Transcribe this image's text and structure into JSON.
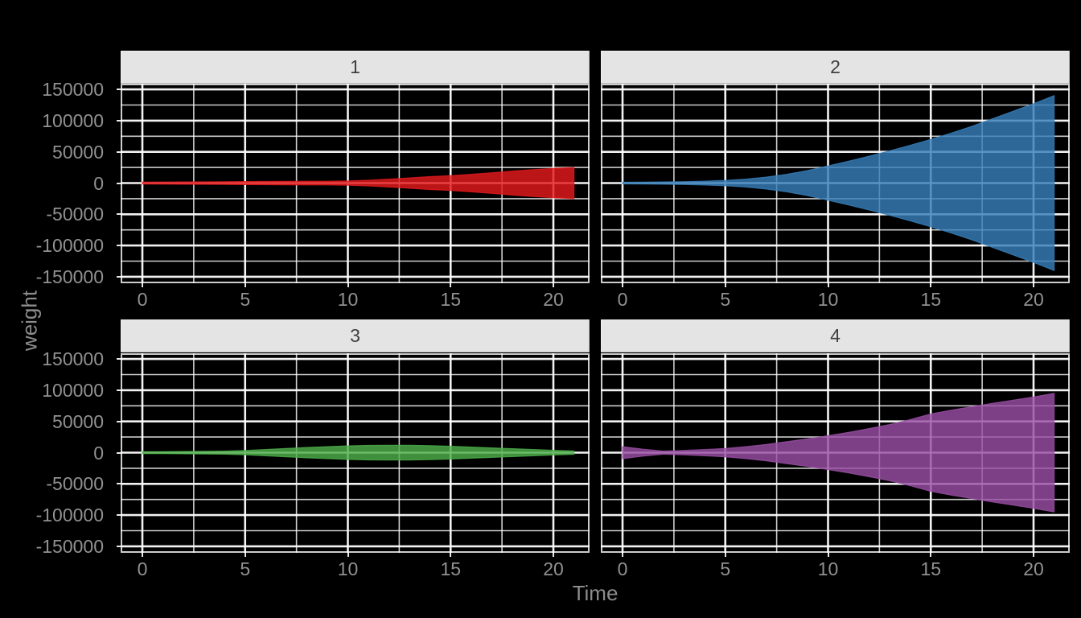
{
  "chart_data": {
    "type": "area",
    "variant": "faceted symmetric fan/violin ribbons centered on y=0",
    "title": "",
    "xlabel": "Time",
    "ylabel": "weight",
    "legend": "none",
    "grid": "white major and minor gridlines on dark (transparent) panel background",
    "background_color": "#000000",
    "grid_color": "#FFFFFF",
    "strip_bg_color": "#E4E4E4",
    "strip_text_color": "#3F3F3F",
    "axis_text_color": "#919191",
    "fill_opacity": 0.82,
    "xlim": [
      -1.06,
      21.76
    ],
    "ylim": [
      -160000,
      160000
    ],
    "x_ticks": [
      0,
      5,
      10,
      15,
      20
    ],
    "x_tick_labels": [
      "0",
      "5",
      "10",
      "15",
      "20"
    ],
    "x_minor_ticks": [
      2.5,
      7.5,
      12.5,
      17.5
    ],
    "y_ticks": [
      150000,
      100000,
      50000,
      0,
      -50000,
      -100000,
      -150000
    ],
    "y_tick_labels": [
      "150000",
      "100000",
      "50000",
      "0",
      "-50000",
      "-100000",
      "-150000"
    ],
    "y_minor_ticks": [
      125000,
      75000,
      25000,
      -25000,
      -75000,
      -125000
    ],
    "x": [
      0,
      1,
      2,
      3,
      4,
      5,
      6,
      7,
      8,
      9,
      10,
      11,
      12,
      13,
      14,
      15,
      16,
      17,
      18,
      19,
      20,
      21
    ],
    "facets": [
      {
        "label": "1",
        "color": "#E41A1C",
        "half_width": [
          1600,
          1700,
          1800,
          1900,
          2100,
          2400,
          2600,
          2800,
          2900,
          3000,
          3300,
          4500,
          6300,
          8300,
          10300,
          11800,
          14000,
          16500,
          19200,
          21500,
          23300,
          25000
        ]
      },
      {
        "label": "2",
        "color": "#377EB8",
        "half_width": [
          1300,
          1500,
          1800,
          2300,
          3100,
          4300,
          6300,
          9500,
          14000,
          20000,
          27500,
          35000,
          43000,
          51500,
          60500,
          70000,
          80000,
          91000,
          103000,
          115000,
          127000,
          140000
        ]
      },
      {
        "label": "3",
        "color": "#4DAF4A",
        "half_width": [
          1500,
          1600,
          1750,
          2000,
          2500,
          3500,
          5000,
          6600,
          8200,
          9600,
          10800,
          11600,
          11900,
          11800,
          11200,
          10200,
          8900,
          7600,
          6300,
          5000,
          3700,
          2600
        ]
      },
      {
        "label": "4",
        "color": "#984EA3",
        "half_width": [
          9500,
          5500,
          2400,
          3600,
          5000,
          6600,
          9500,
          13000,
          17500,
          22000,
          27000,
          32500,
          38500,
          45000,
          53000,
          62000,
          68000,
          73500,
          79000,
          84000,
          89000,
          95000
        ]
      }
    ]
  }
}
